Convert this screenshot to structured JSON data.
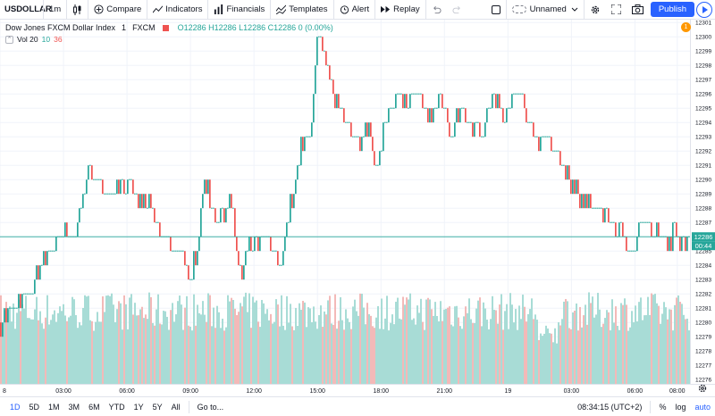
{
  "toolbar": {
    "symbol": "USDOLLAR",
    "interval": "1m",
    "compare": "Compare",
    "indicators": "Indicators",
    "financials": "Financials",
    "templates": "Templates",
    "alert": "Alert",
    "replay": "Replay",
    "layout_name": "Unnamed",
    "publish": "Publish"
  },
  "legend": {
    "title": "Dow Jones FXCM Dollar Index",
    "interval": "1",
    "source": "FXCM",
    "ohlc": "O12286 H12286 L12286 C12286 0 (0.00%)",
    "vol_label": "Vol 20",
    "vol_val1": "10",
    "vol_val2": "36",
    "alert_count": "1"
  },
  "colors": {
    "up": "#26a69a",
    "down": "#ef5350",
    "vol_up": "#a8dcd6",
    "vol_down": "#f3b9b8",
    "accent": "#2962ff",
    "grid": "#f0f3fa"
  },
  "chart_data": {
    "type": "candlestick",
    "y_ticks": [
      12276,
      12277,
      12278,
      12279,
      12280,
      12281,
      12282,
      12283,
      12284,
      12285,
      12286,
      12287,
      12288,
      12289,
      12290,
      12291,
      12292,
      12293,
      12294,
      12295,
      12296,
      12297,
      12298,
      12299,
      12300,
      12301
    ],
    "ylim": [
      12275.7,
      12301.2
    ],
    "current_price": "12286",
    "countdown": "00:44",
    "x_ticks": [
      "8",
      "03:00",
      "06:00",
      "09:00",
      "12:00",
      "15:00",
      "18:00",
      "21:00",
      "19",
      "03:00",
      "06:00",
      "08:00"
    ],
    "x_tick_hours": [
      0,
      3,
      6,
      9,
      12,
      15,
      18,
      21,
      24,
      27,
      30,
      32
    ],
    "x_range_hours": [
      0,
      32.6
    ],
    "close_keypoints": [
      [
        0.0,
        12280
      ],
      [
        1.5,
        12282
      ],
      [
        1.8,
        12284
      ],
      [
        2.4,
        12285
      ],
      [
        2.7,
        12286
      ],
      [
        3.5,
        12286
      ],
      [
        3.8,
        12288
      ],
      [
        4.2,
        12291
      ],
      [
        4.5,
        12290
      ],
      [
        5.2,
        12289
      ],
      [
        5.5,
        12290
      ],
      [
        6.2,
        12289
      ],
      [
        7.0,
        12288
      ],
      [
        7.5,
        12286
      ],
      [
        8.5,
        12285
      ],
      [
        8.8,
        12283
      ],
      [
        9.2,
        12285
      ],
      [
        9.6,
        12290
      ],
      [
        10.2,
        12287
      ],
      [
        10.8,
        12289
      ],
      [
        11.0,
        12286
      ],
      [
        11.3,
        12283
      ],
      [
        11.6,
        12285
      ],
      [
        12.2,
        12286
      ],
      [
        12.8,
        12285
      ],
      [
        13.1,
        12284
      ],
      [
        13.6,
        12288
      ],
      [
        14.1,
        12292
      ],
      [
        14.6,
        12294
      ],
      [
        14.9,
        12300
      ],
      [
        15.4,
        12297
      ],
      [
        15.9,
        12295
      ],
      [
        16.4,
        12294
      ],
      [
        16.9,
        12292
      ],
      [
        17.2,
        12294
      ],
      [
        17.6,
        12291
      ],
      [
        18.1,
        12294
      ],
      [
        18.6,
        12296
      ],
      [
        19.1,
        12295
      ],
      [
        19.6,
        12296
      ],
      [
        20.1,
        12294
      ],
      [
        20.6,
        12296
      ],
      [
        21.1,
        12293
      ],
      [
        21.6,
        12295
      ],
      [
        22.1,
        12294
      ],
      [
        22.6,
        12293
      ],
      [
        23.1,
        12296
      ],
      [
        23.6,
        12294
      ],
      [
        24.1,
        12296
      ],
      [
        24.6,
        12295
      ],
      [
        25.1,
        12293
      ],
      [
        25.6,
        12293
      ],
      [
        26.1,
        12292
      ],
      [
        26.6,
        12290
      ],
      [
        27.1,
        12289
      ],
      [
        27.6,
        12288
      ],
      [
        28.1,
        12288
      ],
      [
        28.6,
        12287
      ],
      [
        29.1,
        12286
      ],
      [
        29.6,
        12285
      ],
      [
        30.1,
        12287
      ],
      [
        30.6,
        12286
      ],
      [
        31.1,
        12286
      ],
      [
        31.6,
        12286
      ],
      [
        32.4,
        12286
      ]
    ],
    "volume_ylim": [
      0,
      10
    ],
    "volume_typical_range": [
      5.5,
      9.5
    ]
  },
  "bottombar": {
    "ranges": [
      "1D",
      "5D",
      "1M",
      "3M",
      "6M",
      "YTD",
      "1Y",
      "5Y",
      "All"
    ],
    "active_range": "1D",
    "goto": "Go to...",
    "clock": "08:34:15 (UTC+2)",
    "pct": "%",
    "log": "log",
    "auto": "auto"
  }
}
